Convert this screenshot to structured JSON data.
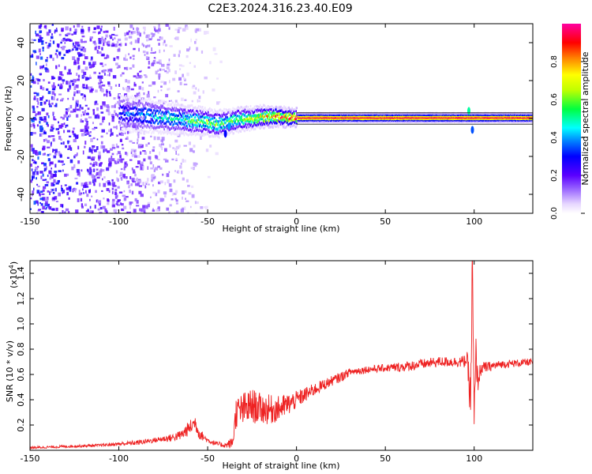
{
  "figure": {
    "title": "C2E3.2024.316.23.40.E09"
  },
  "chart_data": [
    {
      "type": "heatmap",
      "xlabel": "Height of straight line (km)",
      "ylabel": "Frequency (Hz)",
      "xlim": [
        -150,
        133
      ],
      "ylim": [
        -50,
        50
      ],
      "x_ticks": [
        -150,
        -100,
        -50,
        0,
        50,
        100
      ],
      "y_ticks": [
        -40,
        -20,
        0,
        20,
        40
      ],
      "colorbar": {
        "label": "Normalized spectral amplitude",
        "range": [
          0,
          1
        ],
        "ticks": [
          0.0,
          0.2,
          0.4,
          0.6,
          0.8
        ],
        "tick_labels": [
          "0.0",
          "0.2",
          "0.4",
          "0.6",
          "0.8"
        ]
      },
      "ridge": {
        "x": [
          -100,
          -90,
          -80,
          -70,
          -60,
          -50,
          -45,
          -40,
          -35,
          -30,
          -25,
          -20,
          -15,
          -10,
          -5,
          0,
          100,
          133
        ],
        "center_frequency": [
          3,
          2,
          1,
          0,
          -1,
          -2,
          -3,
          -2,
          -1,
          0,
          0,
          1,
          1,
          1,
          0.5,
          0.5,
          0.5,
          0.5
        ],
        "amplitude": [
          0.35,
          0.4,
          0.45,
          0.5,
          0.55,
          0.6,
          0.6,
          0.55,
          0.6,
          0.65,
          0.7,
          0.75,
          0.8,
          0.85,
          0.9,
          0.95,
          0.95,
          0.95
        ]
      },
      "noise_region_x": [
        -150,
        -40
      ],
      "reference_lines_hz": [
        3,
        -3
      ]
    },
    {
      "type": "line",
      "xlabel": "Height of straight line (km)",
      "ylabel": "SNR (10 * v/v)",
      "y_scale_label": "(x10",
      "y_scale_exponent": "4",
      "y_scale_suffix": ")",
      "xlim": [
        -150,
        133
      ],
      "ylim": [
        0,
        1.5
      ],
      "x_ticks": [
        -150,
        -100,
        -50,
        0,
        50,
        100
      ],
      "y_ticks": [
        0.2,
        0.4,
        0.6,
        0.8,
        1.0,
        1.2,
        1.4
      ],
      "y_tick_labels": [
        "0.2",
        "0.4",
        "0.6",
        "0.8",
        "1.0",
        "1.2",
        "1.4"
      ],
      "color": "#ee2222",
      "series": [
        {
          "x": [
            -150,
            -130,
            -110,
            -100,
            -90,
            -80,
            -70,
            -65,
            -60,
            -57,
            -55,
            -52,
            -50,
            -45,
            -40,
            -36,
            -34,
            -30,
            -25,
            -20,
            -15,
            -10,
            -5,
            0,
            10,
            20,
            25,
            30,
            40,
            50,
            60,
            65,
            70,
            75,
            80,
            85,
            90,
            94,
            96,
            98,
            99,
            100,
            101,
            102,
            104,
            108,
            115,
            125,
            133
          ],
          "values": [
            0.02,
            0.03,
            0.04,
            0.05,
            0.06,
            0.08,
            0.1,
            0.12,
            0.18,
            0.22,
            0.14,
            0.1,
            0.08,
            0.05,
            0.04,
            0.06,
            0.3,
            0.32,
            0.35,
            0.33,
            0.32,
            0.33,
            0.36,
            0.4,
            0.48,
            0.55,
            0.58,
            0.62,
            0.64,
            0.65,
            0.66,
            0.67,
            0.68,
            0.69,
            0.7,
            0.7,
            0.7,
            0.7,
            0.72,
            0.4,
            1.45,
            0.2,
            0.75,
            0.55,
            0.65,
            0.66,
            0.68,
            0.69,
            0.7
          ],
          "noise_amplitude": [
            0.01,
            0.01,
            0.01,
            0.015,
            0.02,
            0.02,
            0.03,
            0.04,
            0.06,
            0.06,
            0.05,
            0.03,
            0.02,
            0.02,
            0.02,
            0.05,
            0.12,
            0.14,
            0.14,
            0.12,
            0.12,
            0.1,
            0.09,
            0.07,
            0.05,
            0.04,
            0.04,
            0.03,
            0.03,
            0.03,
            0.04,
            0.04,
            0.04,
            0.04,
            0.04,
            0.04,
            0.04,
            0.05,
            0.06,
            0.2,
            0.25,
            0.2,
            0.15,
            0.1,
            0.05,
            0.04,
            0.03,
            0.03,
            0.03
          ]
        }
      ]
    }
  ]
}
